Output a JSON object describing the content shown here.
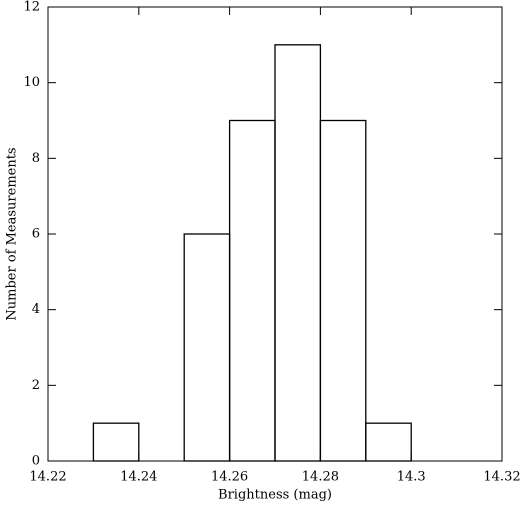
{
  "chart_data": {
    "type": "histogram",
    "xlabel": "Brightness (mag)",
    "ylabel": "Number of Measurements",
    "bins": [
      14.23,
      14.24,
      14.25,
      14.26,
      14.27,
      14.28,
      14.29,
      14.3
    ],
    "counts": [
      1,
      0,
      6,
      9,
      11,
      9,
      1
    ],
    "color": "#000000",
    "xlim": [
      14.22,
      14.32
    ],
    "xticks": [
      14.22,
      14.24,
      14.26,
      14.28,
      14.3,
      14.32
    ],
    "ylim": [
      0,
      12
    ],
    "yticks": [
      0,
      2,
      4,
      6,
      8,
      10,
      12
    ],
    "grid": false
  }
}
